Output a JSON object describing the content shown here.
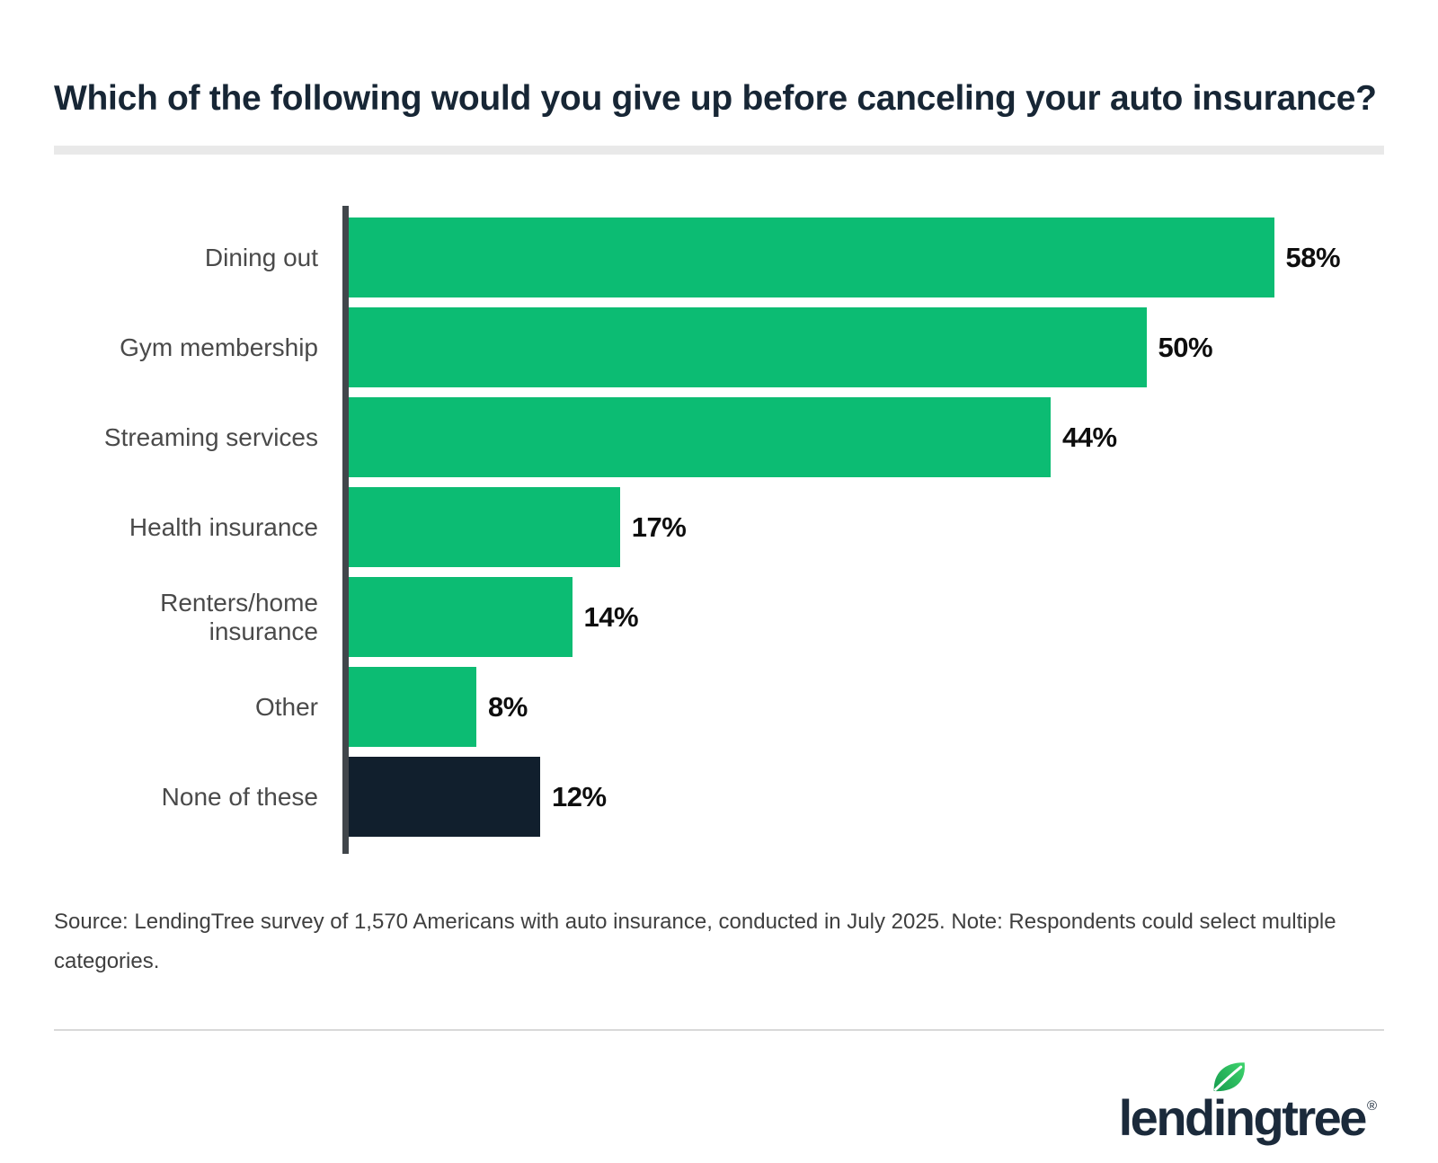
{
  "title": "Which of the following would you give up before canceling your auto insurance?",
  "source_note": "Source: LendingTree survey of 1,570 Americans with auto insurance, conducted in July 2025. Note: Respondents could select multiple categories.",
  "logo": {
    "brand": "lendingtree",
    "registered_mark": "®",
    "leaf_icon": "leaf-icon"
  },
  "colors": {
    "bar_green": "#0cbc73",
    "bar_navy": "#111f2d",
    "title_navy": "#172635",
    "category_gray": "#4a4a4a",
    "value_black": "#0e0e0e",
    "axis_gray": "#41464b",
    "title_rule_gray": "#e9e9e9",
    "footer_divider_gray": "#d9d9d9",
    "leaf_green_dark": "#169b4e",
    "leaf_green_light": "#3fd56d"
  },
  "chart_data": {
    "type": "bar",
    "orientation": "horizontal",
    "title": "Which of the following would you give up before canceling your auto insurance?",
    "categories": [
      "Dining out",
      "Gym membership",
      "Streaming services",
      "Health insurance",
      "Renters/home insurance",
      "Other",
      "None of these"
    ],
    "values": [
      58,
      50,
      44,
      17,
      14,
      8,
      12
    ],
    "value_labels": [
      "58%",
      "50%",
      "44%",
      "17%",
      "14%",
      "8%",
      "12%"
    ],
    "bar_color_default": "#0cbc73",
    "bar_color_overrides": {
      "None of these": "#111f2d"
    },
    "xlim": [
      0,
      64.9
    ],
    "grid": false,
    "legend": false,
    "value_label_position": "outside-end"
  }
}
